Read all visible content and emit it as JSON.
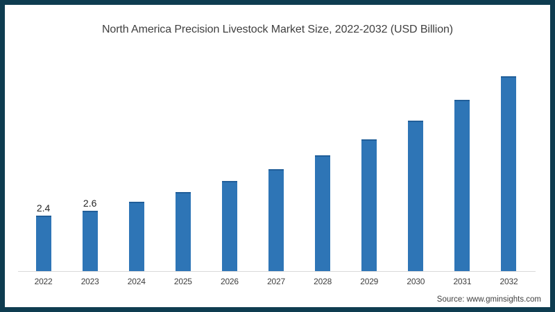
{
  "frame": {
    "border_color": "#0e3c50",
    "background_color": "#ffffff"
  },
  "header": {
    "title": "North America Precision Livestock Market Size, 2022-2032 (USD Billion)"
  },
  "footer": {
    "source": "Source: www.gminsights.com"
  },
  "chart_data": {
    "type": "bar",
    "title": "North America Precision Livestock Market Size, 2022-2032 (USD Billion)",
    "categories": [
      "2022",
      "2023",
      "2024",
      "2025",
      "2026",
      "2027",
      "2028",
      "2029",
      "2030",
      "2031",
      "2032"
    ],
    "values": [
      2.4,
      2.6,
      3.0,
      3.4,
      3.9,
      4.4,
      5.0,
      5.7,
      6.5,
      7.4,
      8.4
    ],
    "data_labels": [
      "2.4",
      "2.6",
      "",
      "",
      "",
      "",
      "",
      "",
      "",
      "",
      ""
    ],
    "xlabel": "",
    "ylabel": "",
    "ylim": [
      0,
      9
    ],
    "grid": false,
    "legend": false,
    "y_axis_visible": false,
    "bar_color": "#2e75b6",
    "bar_top_edge_color": "#205e99",
    "axis_line_color": "#d9d9d9",
    "label_color": "#262626",
    "tick_color": "#3d3d3d"
  }
}
